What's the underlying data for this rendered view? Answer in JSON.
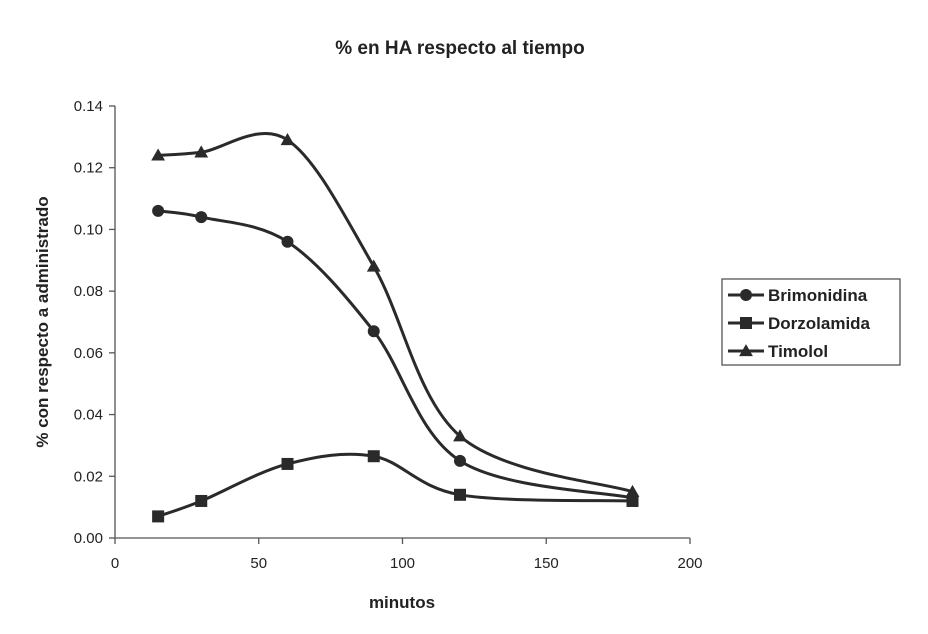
{
  "chart_data": {
    "type": "line",
    "title": "% en HA respecto al tiempo",
    "xlabel": "minutos",
    "ylabel": "% con respecto a administrado",
    "xlim": [
      0,
      200
    ],
    "ylim": [
      0,
      0.14
    ],
    "x_ticks": [
      "0",
      "50",
      "100",
      "150",
      "200"
    ],
    "y_ticks": [
      "0.00",
      "0.02",
      "0.04",
      "0.06",
      "0.08",
      "0.10",
      "0.12",
      "0.14"
    ],
    "grid": false,
    "smooth": true,
    "legend_position": "right",
    "x": [
      15,
      30,
      60,
      90,
      120,
      180
    ],
    "series": [
      {
        "name": "Brimonidina",
        "marker": "circle",
        "values": [
          0.106,
          0.104,
          0.096,
          0.067,
          0.025,
          0.013
        ]
      },
      {
        "name": "Dorzolamida",
        "marker": "square",
        "values": [
          0.007,
          0.012,
          0.024,
          0.0265,
          0.014,
          0.012
        ]
      },
      {
        "name": "Timolol",
        "marker": "triangle",
        "values": [
          0.124,
          0.125,
          0.129,
          0.088,
          0.033,
          0.015
        ]
      }
    ],
    "colors": {
      "line": "#2a2a2a",
      "axis": "#555555"
    }
  }
}
